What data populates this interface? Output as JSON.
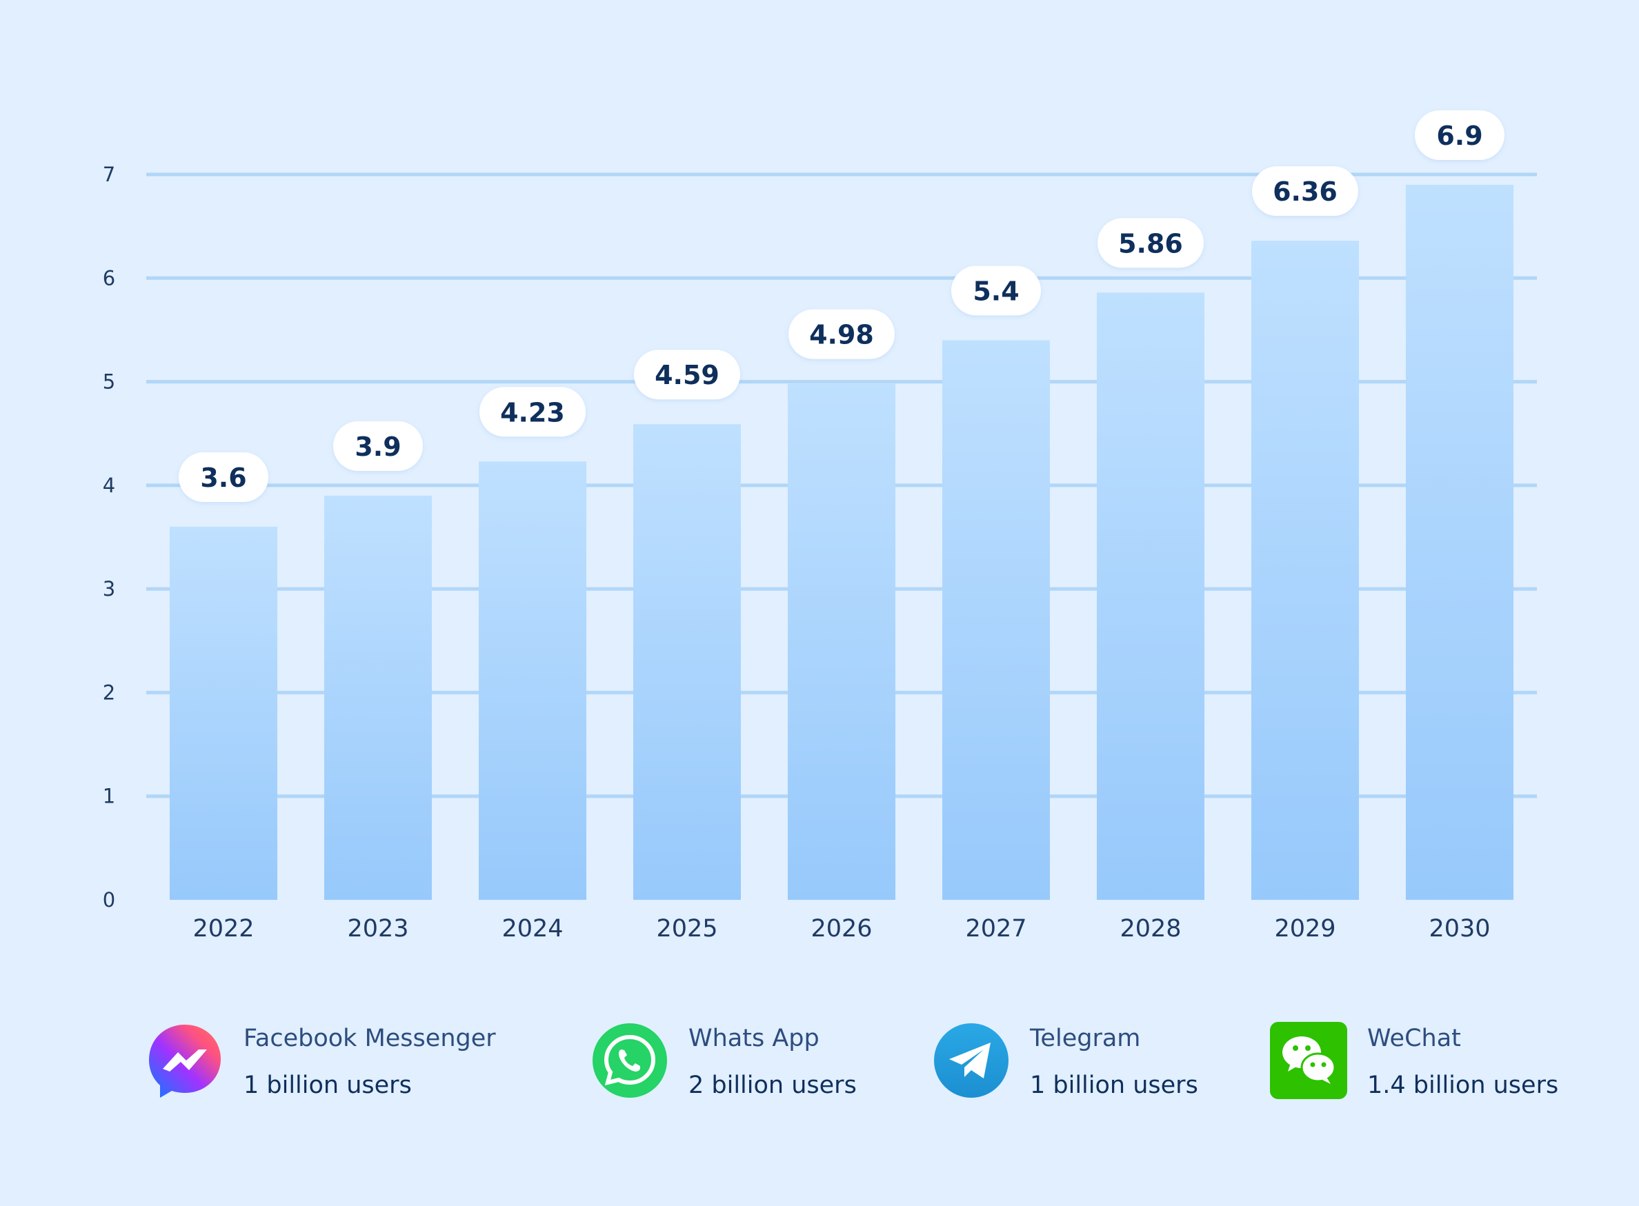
{
  "colors": {
    "background": "#e1efff",
    "bar_top": "#bfe0ff",
    "bar_bottom": "#97c9fb",
    "gridline": "#b1d6f7",
    "label_text": "#0f2f5c",
    "label_pill": "#ffffff"
  },
  "chart_data": {
    "type": "bar",
    "categories": [
      "2022",
      "2023",
      "2024",
      "2025",
      "2026",
      "2027",
      "2028",
      "2029",
      "2030"
    ],
    "values": [
      3.6,
      3.9,
      4.23,
      4.59,
      4.98,
      5.4,
      5.86,
      6.36,
      6.9
    ],
    "data_labels": [
      "3.6",
      "3.9",
      "4.23",
      "4.59",
      "4.98",
      "5.4",
      "5.86",
      "6.36",
      "6.9"
    ],
    "y_ticks": [
      0,
      1,
      2,
      3,
      4,
      5,
      6,
      7
    ],
    "ylim": [
      0,
      7
    ],
    "grid": true,
    "title": "",
    "xlabel": "",
    "ylabel": ""
  },
  "legend": [
    {
      "icon": "facebook-messenger-icon",
      "name": "Facebook Messenger",
      "users": "1 billion users"
    },
    {
      "icon": "whatsapp-icon",
      "name": "Whats App",
      "users": "2 billion users"
    },
    {
      "icon": "telegram-icon",
      "name": "Telegram",
      "users": "1 billion users"
    },
    {
      "icon": "wechat-icon",
      "name": "WeChat",
      "users": "1.4 billion users"
    }
  ]
}
